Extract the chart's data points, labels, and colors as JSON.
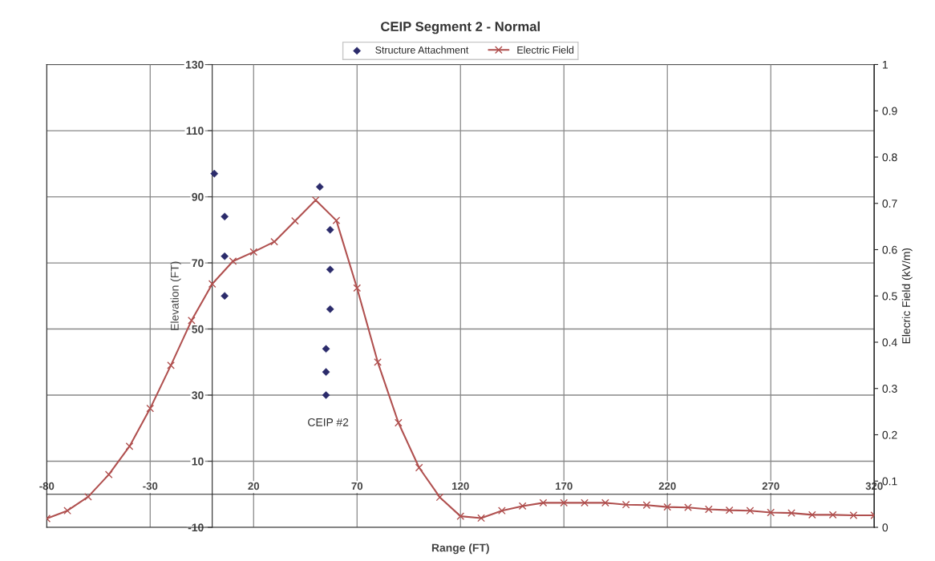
{
  "chart_data": {
    "type": "scatter",
    "title": "CEIP Segment 2 - Normal",
    "xlabel": "Range (FT)",
    "ylabel": "Elevation (FT)",
    "y2label": "Elecric Field (kV/m)",
    "xlim": [
      -80,
      320
    ],
    "xticks": [
      -80,
      -30,
      20,
      70,
      120,
      170,
      220,
      270,
      320
    ],
    "ylim": [
      -10,
      130
    ],
    "yticks": [
      -10,
      10,
      30,
      50,
      70,
      90,
      110,
      130
    ],
    "y2lim": [
      0,
      1
    ],
    "y2ticks": [
      0,
      0.1,
      0.2,
      0.3,
      0.4,
      0.5,
      0.6,
      0.7,
      0.8,
      0.9,
      1
    ],
    "grid": true,
    "legend": "top",
    "annotations": [
      "CEIP #2"
    ],
    "series": [
      {
        "name": "Structure Attachment",
        "marker": "diamond",
        "color": "#2b2b6b",
        "x": [
          1,
          6,
          6,
          6,
          52,
          57,
          57,
          57,
          55,
          55,
          55
        ],
        "values": [
          97,
          84,
          72,
          60,
          93,
          80,
          68,
          56,
          44,
          37,
          30
        ]
      },
      {
        "name": "Electric Field",
        "type": "line",
        "axis": "y2",
        "marker": "cross",
        "color": "#b0504f",
        "x": [
          -80,
          -70,
          -60,
          -50,
          -40,
          -30,
          -20,
          -10,
          0,
          10,
          20,
          30,
          40,
          50,
          60,
          70,
          80,
          90,
          100,
          110,
          120,
          130,
          140,
          150,
          160,
          170,
          180,
          190,
          200,
          210,
          220,
          230,
          240,
          250,
          260,
          270,
          280,
          290,
          300,
          310,
          320
        ],
        "values": [
          0.019,
          0.036,
          0.066,
          0.114,
          0.175,
          0.257,
          0.35,
          0.447,
          0.526,
          0.575,
          0.595,
          0.617,
          0.662,
          0.707,
          0.663,
          0.517,
          0.357,
          0.226,
          0.129,
          0.065,
          0.024,
          0.02,
          0.036,
          0.046,
          0.053,
          0.053,
          0.053,
          0.053,
          0.049,
          0.048,
          0.044,
          0.043,
          0.039,
          0.037,
          0.036,
          0.032,
          0.031,
          0.027,
          0.027,
          0.026,
          0.026
        ]
      }
    ]
  }
}
